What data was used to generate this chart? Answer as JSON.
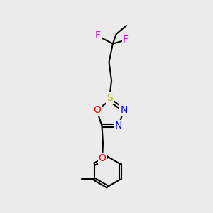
{
  "bg_color": "#ebebeb",
  "bond_color": "#000000",
  "bond_width": 1.5,
  "atom_colors": {
    "F": "#e000e0",
    "S": "#b8b800",
    "O": "#ff0000",
    "N": "#0000ee",
    "C": "#000000"
  },
  "font_size_atom": 10,
  "fig_width": 3.0,
  "fig_height": 3.0,
  "dpi": 100
}
